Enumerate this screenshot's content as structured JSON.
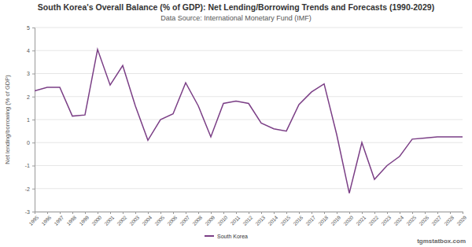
{
  "chart_data": {
    "type": "line",
    "title": "South Korea's Overall Balance (% of GDP): Net Lending/Borrowing Trends and Forecasts (1990-2029)",
    "subtitle": "Data Source: International Monetary Fund (IMF)",
    "y_label": "Net lending/borrowing (% of GDP)",
    "watermark": "tgmstatbox.com",
    "x": [
      1995,
      1996,
      1997,
      1998,
      1999,
      2000,
      2001,
      2002,
      2003,
      2004,
      2005,
      2006,
      2007,
      2008,
      2009,
      2010,
      2011,
      2012,
      2013,
      2014,
      2015,
      2016,
      2017,
      2018,
      2019,
      2020,
      2021,
      2022,
      2023,
      2024,
      2025,
      2026,
      2027,
      2028,
      2029
    ],
    "series": [
      {
        "name": "South Korea",
        "color": "#7b3f86",
        "values": [
          2.25,
          2.4,
          2.4,
          1.15,
          1.2,
          4.05,
          2.5,
          3.35,
          1.6,
          0.1,
          1.0,
          1.25,
          2.6,
          1.6,
          0.25,
          1.7,
          1.8,
          1.7,
          0.85,
          0.6,
          0.5,
          1.65,
          2.2,
          2.55,
          0.35,
          -2.2,
          0.0,
          -1.6,
          -1.0,
          -0.6,
          0.15,
          0.2,
          0.25,
          0.25,
          0.25
        ]
      }
    ],
    "xlim": [
      1995,
      2029
    ],
    "xticks": [
      1995,
      1996,
      1997,
      1998,
      1999,
      2000,
      2001,
      2002,
      2003,
      2004,
      2005,
      2006,
      2007,
      2008,
      2009,
      2010,
      2011,
      2012,
      2013,
      2014,
      2015,
      2016,
      2017,
      2018,
      2019,
      2020,
      2021,
      2022,
      2023,
      2024,
      2025,
      2026,
      2027,
      2028,
      2029
    ],
    "ylim": [
      -3,
      5
    ],
    "yticks": [
      -3,
      -2,
      -1,
      0,
      1,
      2,
      3,
      4,
      5
    ],
    "grid": true,
    "legend": "bottom"
  }
}
